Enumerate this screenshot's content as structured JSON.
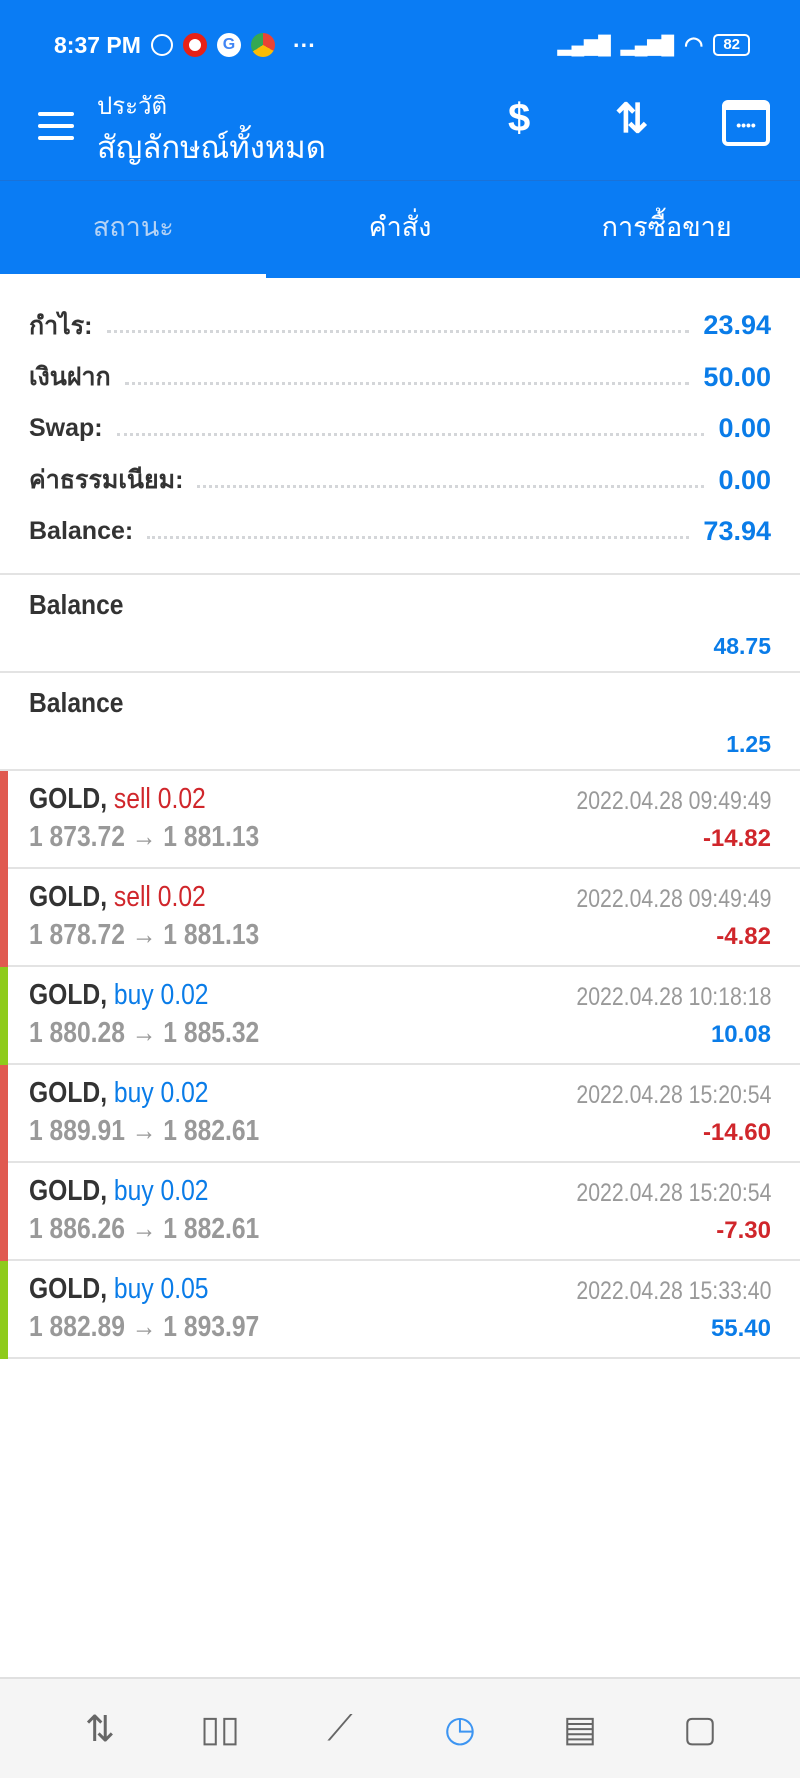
{
  "status_bar": {
    "time": "8:37 PM",
    "more": "···",
    "battery": "82"
  },
  "header": {
    "subtitle": "ประวัติ",
    "title": "สัญลักษณ์ทั้งหมด",
    "icons": [
      "currency-exchange-icon",
      "sort-icon",
      "calendar-icon"
    ]
  },
  "tabs": [
    {
      "label": "สถานะ",
      "active": true
    },
    {
      "label": "คำสั่ง"
    },
    {
      "label": "การซื้อขาย"
    }
  ],
  "summary": [
    {
      "label": "กำไร:",
      "value": "23.94"
    },
    {
      "label": "เงินฝาก",
      "value": "50.00"
    },
    {
      "label": "Swap:",
      "value": "0.00"
    },
    {
      "label": "ค่าธรรมเนียม:",
      "value": "0.00"
    },
    {
      "label": "Balance:",
      "value": "73.94"
    }
  ],
  "balances": [
    {
      "label": "Balance",
      "value": "48.75"
    },
    {
      "label": "Balance",
      "value": "1.25"
    }
  ],
  "trades": [
    {
      "symbol": "GOLD,",
      "side": "sell 0.02",
      "prices": "1 873.72 → 1 881.13",
      "time": "2022.04.28 09:49:49",
      "profit": "-14.82"
    },
    {
      "symbol": "GOLD,",
      "side": "sell 0.02",
      "prices": "1 878.72 → 1 881.13",
      "time": "2022.04.28 09:49:49",
      "profit": "-4.82"
    },
    {
      "symbol": "GOLD,",
      "side": "buy 0.02",
      "prices": "1 880.28 → 1 885.32",
      "time": "2022.04.28 10:18:18",
      "profit": "10.08"
    },
    {
      "symbol": "GOLD,",
      "side": "buy 0.02",
      "prices": "1 889.91 → 1 882.61",
      "time": "2022.04.28 15:20:54",
      "profit": "-14.60"
    },
    {
      "symbol": "GOLD,",
      "side": "buy 0.02",
      "prices": "1 886.26 → 1 882.61",
      "time": "2022.04.28 15:20:54",
      "profit": "-7.30"
    },
    {
      "symbol": "GOLD,",
      "side": "buy 0.05",
      "prices": "1 882.89 → 1 893.97",
      "time": "2022.04.28 15:33:40",
      "profit": "55.40"
    }
  ],
  "colors": {
    "accent": "#0a7cf4",
    "sell": "#d0262b",
    "buy": "#0a7ce8",
    "loss_bar": "#e05a50",
    "profit_bar": "#8ecb1c"
  },
  "bottom_nav": [
    "quotes-icon",
    "chart-icon",
    "trade-icon",
    "history-icon",
    "news-icon",
    "chat-icon"
  ]
}
